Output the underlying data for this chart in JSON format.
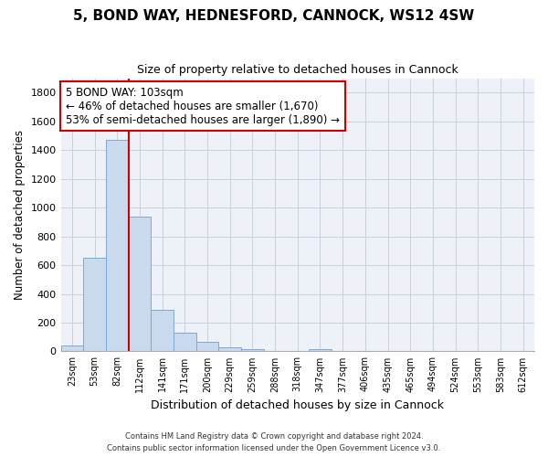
{
  "title": "5, BOND WAY, HEDNESFORD, CANNOCK, WS12 4SW",
  "subtitle": "Size of property relative to detached houses in Cannock",
  "xlabel": "Distribution of detached houses by size in Cannock",
  "ylabel": "Number of detached properties",
  "bar_color": "#c9d9ee",
  "bar_edge_color": "#7aaad4",
  "grid_color": "#c8d0dc",
  "background_color": "#eef2f8",
  "categories": [
    "23sqm",
    "53sqm",
    "82sqm",
    "112sqm",
    "141sqm",
    "171sqm",
    "200sqm",
    "229sqm",
    "259sqm",
    "288sqm",
    "318sqm",
    "347sqm",
    "377sqm",
    "406sqm",
    "435sqm",
    "465sqm",
    "494sqm",
    "524sqm",
    "553sqm",
    "583sqm",
    "612sqm"
  ],
  "values": [
    40,
    650,
    1470,
    940,
    290,
    130,
    65,
    25,
    15,
    0,
    0,
    15,
    0,
    0,
    0,
    0,
    0,
    0,
    0,
    0,
    0
  ],
  "ylim": [
    0,
    1900
  ],
  "yticks": [
    0,
    200,
    400,
    600,
    800,
    1000,
    1200,
    1400,
    1600,
    1800
  ],
  "vline_pos": 2.5,
  "annotation_text": "5 BOND WAY: 103sqm\n← 46% of detached houses are smaller (1,670)\n53% of semi-detached houses are larger (1,890) →",
  "annotation_box_color": "#ffffff",
  "annotation_box_edge": "#cc0000",
  "vline_color": "#cc0000",
  "footnote1": "Contains HM Land Registry data © Crown copyright and database right 2024.",
  "footnote2": "Contains public sector information licensed under the Open Government Licence v3.0."
}
